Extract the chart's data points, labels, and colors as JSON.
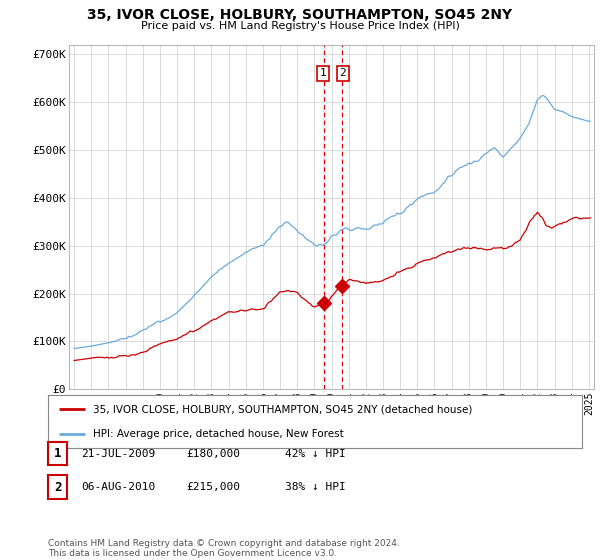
{
  "title": "35, IVOR CLOSE, HOLBURY, SOUTHAMPTON, SO45 2NY",
  "subtitle": "Price paid vs. HM Land Registry's House Price Index (HPI)",
  "ylabel_ticks": [
    "£0",
    "£100K",
    "£200K",
    "£300K",
    "£400K",
    "£500K",
    "£600K",
    "£700K"
  ],
  "ytick_values": [
    0,
    100000,
    200000,
    300000,
    400000,
    500000,
    600000,
    700000
  ],
  "ylim": [
    0,
    720000
  ],
  "hpi_color": "#6aabdb",
  "price_color": "#cc0000",
  "dashed_line_color": "#dd0000",
  "marker1_price": 180000,
  "marker2_price": 215000,
  "legend_label1": "35, IVOR CLOSE, HOLBURY, SOUTHAMPTON, SO45 2NY (detached house)",
  "legend_label2": "HPI: Average price, detached house, New Forest",
  "table_row1": [
    "1",
    "21-JUL-2009",
    "£180,000",
    "42% ↓ HPI"
  ],
  "table_row2": [
    "2",
    "06-AUG-2010",
    "£215,000",
    "38% ↓ HPI"
  ],
  "footnote": "Contains HM Land Registry data © Crown copyright and database right 2024.\nThis data is licensed under the Open Government Licence v3.0.",
  "background_color": "#ffffff",
  "grid_color": "#cccccc",
  "sale1_year": 2009.583,
  "sale2_year": 2010.583
}
